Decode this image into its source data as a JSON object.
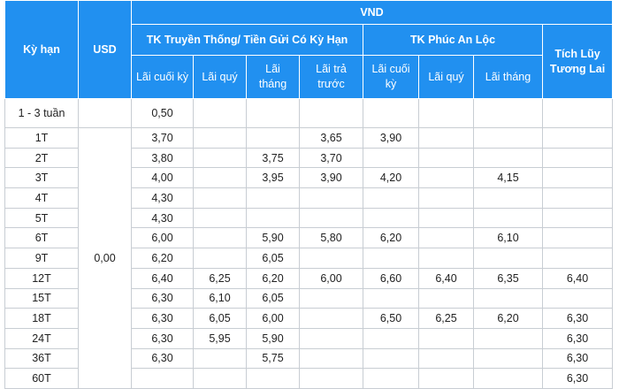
{
  "header": {
    "term": "Kỳ hạn",
    "usd": "USD",
    "vnd": "VND",
    "groups": [
      "TK Truyền Thống/ Tiền Gửi Có Kỳ Hạn",
      "TK Phúc An Lộc",
      "Tích Lũy Tương Lai"
    ],
    "sub": [
      "Lãi cuối kỳ",
      "Lãi quý",
      "Lãi tháng",
      "Lãi trả trước",
      "Lãi cuối kỳ",
      "Lãi quý",
      "Lãi tháng"
    ]
  },
  "usd_merged": "0,00",
  "table": {
    "rows": [
      {
        "term": "1 - 3 tuần",
        "cells": [
          "0,50",
          null,
          null,
          null,
          null,
          null,
          null,
          null
        ]
      },
      {
        "term": "1T",
        "cells": [
          "3,70",
          null,
          null,
          "3,65",
          "3,90",
          null,
          null,
          null
        ]
      },
      {
        "term": "2T",
        "cells": [
          "3,80",
          null,
          "3,75",
          "3,70",
          null,
          null,
          null,
          null
        ]
      },
      {
        "term": "3T",
        "cells": [
          "4,00",
          null,
          "3,95",
          "3,90",
          "4,20",
          null,
          "4,15",
          null
        ]
      },
      {
        "term": "4T",
        "cells": [
          "4,30",
          null,
          null,
          null,
          null,
          null,
          null,
          null
        ]
      },
      {
        "term": "5T",
        "cells": [
          "4,30",
          null,
          null,
          null,
          null,
          null,
          null,
          null
        ]
      },
      {
        "term": "6T",
        "cells": [
          "6,00",
          null,
          "5,90",
          "5,80",
          "6,20",
          null,
          "6,10",
          null
        ]
      },
      {
        "term": "9T",
        "cells": [
          "6,20",
          null,
          "6,05",
          null,
          null,
          null,
          null,
          null
        ]
      },
      {
        "term": "12T",
        "cells": [
          "6,40",
          "6,25",
          "6,20",
          "6,00",
          "6,60",
          "6,40",
          "6,35",
          "6,40"
        ]
      },
      {
        "term": "15T",
        "cells": [
          "6,30",
          "6,10",
          "6,05",
          null,
          null,
          null,
          null,
          null
        ]
      },
      {
        "term": "18T",
        "cells": [
          "6,30",
          "6,05",
          "6,00",
          null,
          "6,50",
          "6,25",
          "6,20",
          "6,30"
        ]
      },
      {
        "term": "24T",
        "cells": [
          "6,30",
          "5,95",
          "5,90",
          null,
          null,
          null,
          null,
          "6,30"
        ]
      },
      {
        "term": "36T",
        "cells": [
          "6,30",
          null,
          "5,75",
          null,
          null,
          null,
          null,
          "6,30"
        ]
      },
      {
        "term": "60T",
        "cells": [
          null,
          null,
          null,
          null,
          null,
          null,
          null,
          "6,30"
        ]
      }
    ]
  }
}
